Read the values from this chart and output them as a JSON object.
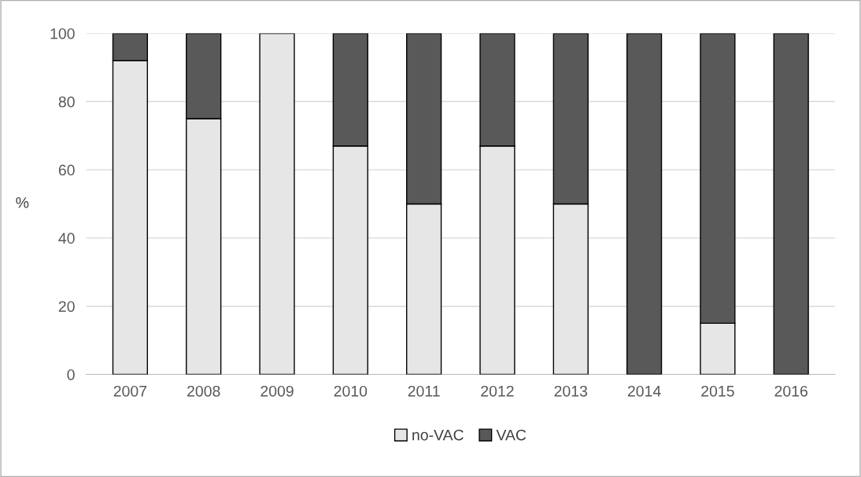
{
  "chart_data": {
    "type": "bar",
    "stacked": true,
    "ylabel": "%",
    "categories": [
      "2007",
      "2008",
      "2009",
      "2010",
      "2011",
      "2012",
      "2013",
      "2014",
      "2015",
      "2016"
    ],
    "series": [
      {
        "name": "no-VAC",
        "color": "#e6e6e6",
        "values": [
          92,
          75,
          100,
          67,
          50,
          67,
          50,
          0,
          15,
          0
        ]
      },
      {
        "name": "VAC",
        "color": "#595959",
        "values": [
          8,
          25,
          0,
          33,
          50,
          33,
          50,
          100,
          85,
          100
        ]
      }
    ],
    "ylim": [
      0,
      100
    ],
    "yticks": [
      0,
      20,
      40,
      60,
      80,
      100
    ],
    "grid": "y",
    "legend": "bottom"
  }
}
